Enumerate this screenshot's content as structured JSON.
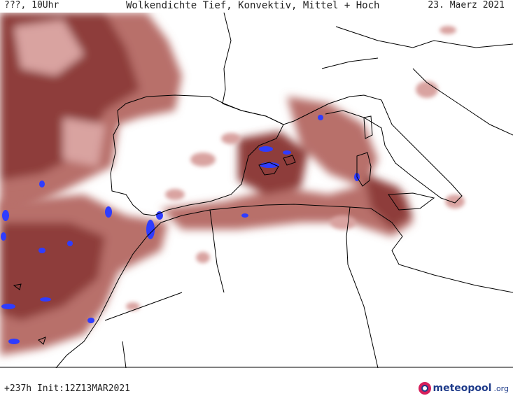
{
  "header": {
    "run_label": "???, 10Uhr",
    "title": "Wolkendichte  Tief, Konvektiv, Mittel + Hoch",
    "valid_date": "23. Maerz 2021"
  },
  "footer": {
    "init_label": "+237h Init:12Z13MAR2021",
    "brand_name": "meteopool",
    "brand_tld": ".org"
  },
  "colors": {
    "cloud_dark": "#8e3e3a",
    "cloud_mid": "#b8706a",
    "cloud_light": "#d9a3a0",
    "convective": "#2f3cff",
    "coastline": "#000000",
    "background": "#ffffff"
  },
  "icons": {
    "brand_logo": "meteopool-logo-icon"
  }
}
